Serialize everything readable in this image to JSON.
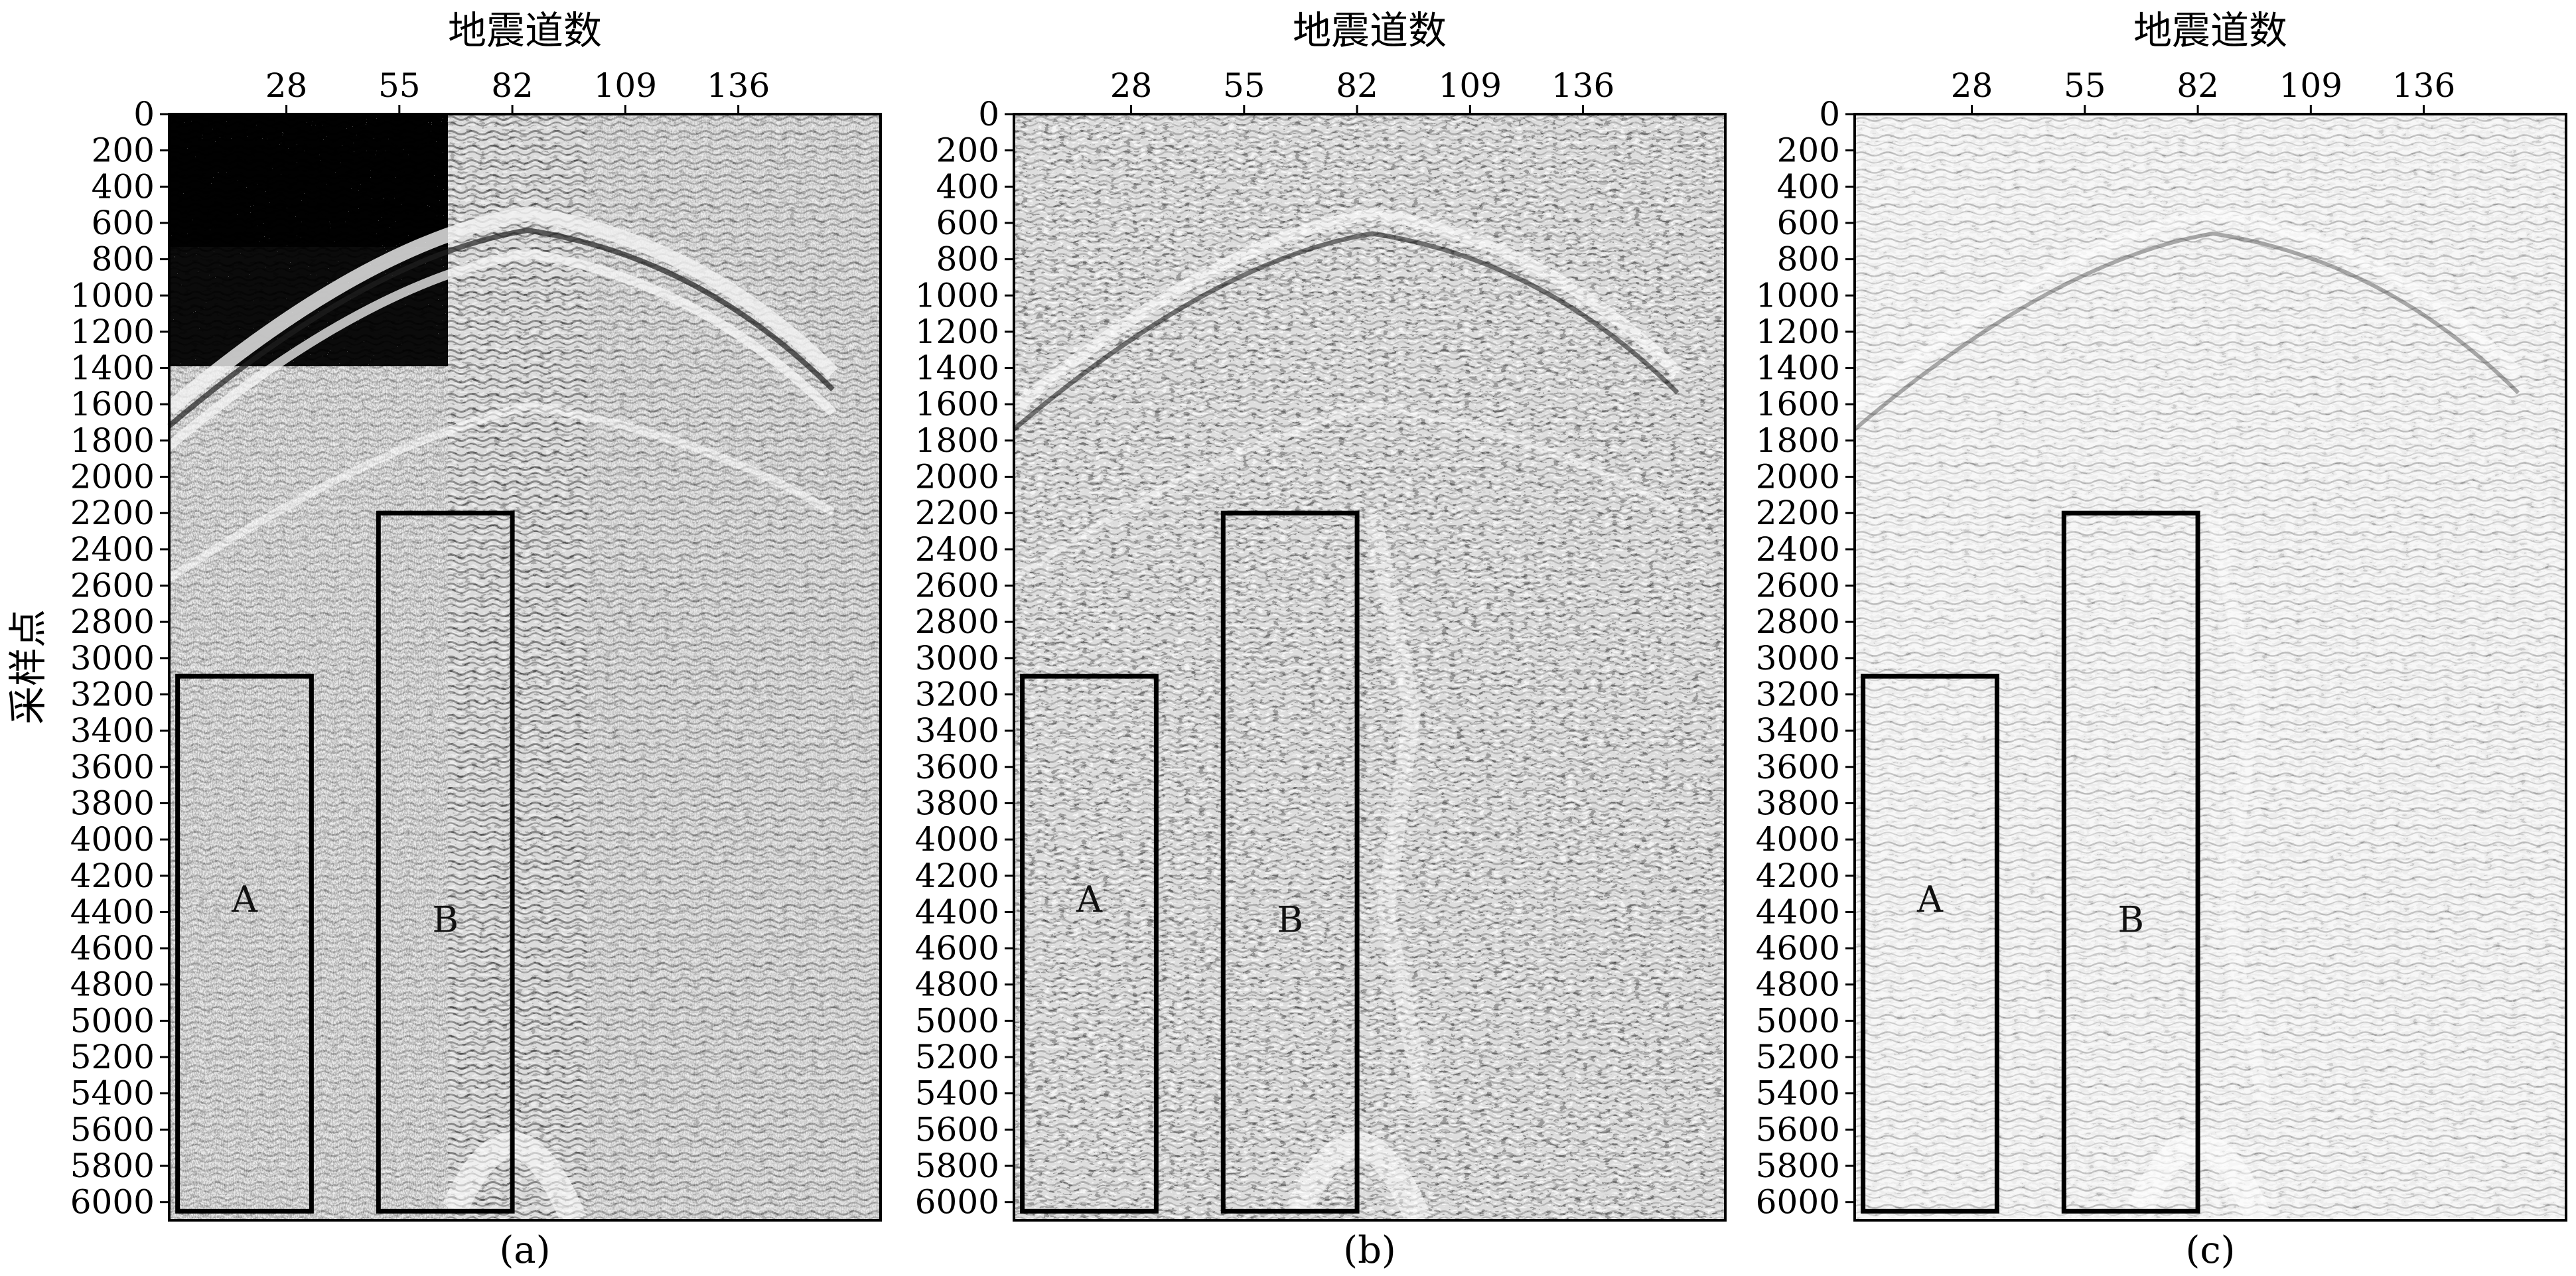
{
  "chart_data": [
    {
      "type": "heatmap",
      "panel": "a",
      "caption": "(a)",
      "xlabel": "地震道数",
      "ylabel": "采样点",
      "xlim": [
        0,
        170
      ],
      "ylim": [
        6100,
        0
      ],
      "x_ticks": [
        28,
        55,
        82,
        109,
        136
      ],
      "y_ticks": [
        0,
        200,
        400,
        600,
        800,
        1000,
        1200,
        1400,
        1600,
        1800,
        2000,
        2200,
        2400,
        2600,
        2800,
        3000,
        3200,
        3400,
        3600,
        3800,
        4000,
        4200,
        4400,
        4600,
        4800,
        5000,
        5200,
        5400,
        5600,
        5800,
        6000
      ],
      "colormap": "grayscale",
      "noise_level": "high",
      "regions": [
        {
          "label": "A",
          "x_range": [
            2,
            34
          ],
          "y_range": [
            3100,
            6050
          ]
        },
        {
          "label": "B",
          "x_range": [
            50,
            82
          ],
          "y_range": [
            2200,
            6050
          ]
        }
      ]
    },
    {
      "type": "heatmap",
      "panel": "b",
      "caption": "(b)",
      "xlabel": "地震道数",
      "ylabel": "",
      "xlim": [
        0,
        170
      ],
      "ylim": [
        6100,
        0
      ],
      "x_ticks": [
        28,
        55,
        82,
        109,
        136
      ],
      "y_ticks": [
        0,
        200,
        400,
        600,
        800,
        1000,
        1200,
        1400,
        1600,
        1800,
        2000,
        2200,
        2400,
        2600,
        2800,
        3000,
        3200,
        3400,
        3600,
        3800,
        4000,
        4200,
        4400,
        4600,
        4800,
        5000,
        5200,
        5400,
        5600,
        5800,
        6000
      ],
      "colormap": "grayscale",
      "noise_level": "medium",
      "regions": [
        {
          "label": "A",
          "x_range": [
            2,
            34
          ],
          "y_range": [
            3100,
            6050
          ]
        },
        {
          "label": "B",
          "x_range": [
            50,
            82
          ],
          "y_range": [
            2200,
            6050
          ]
        }
      ]
    },
    {
      "type": "heatmap",
      "panel": "c",
      "caption": "(c)",
      "xlabel": "地震道数",
      "ylabel": "",
      "xlim": [
        0,
        170
      ],
      "ylim": [
        6100,
        0
      ],
      "x_ticks": [
        28,
        55,
        82,
        109,
        136
      ],
      "y_ticks": [
        0,
        200,
        400,
        600,
        800,
        1000,
        1200,
        1400,
        1600,
        1800,
        2000,
        2200,
        2400,
        2600,
        2800,
        3000,
        3200,
        3400,
        3600,
        3800,
        4000,
        4200,
        4400,
        4600,
        4800,
        5000,
        5200,
        5400,
        5600,
        5800,
        6000
      ],
      "colormap": "grayscale",
      "noise_level": "low",
      "regions": [
        {
          "label": "A",
          "x_range": [
            2,
            34
          ],
          "y_range": [
            3100,
            6050
          ]
        },
        {
          "label": "B",
          "x_range": [
            50,
            82
          ],
          "y_range": [
            2200,
            6050
          ]
        }
      ]
    }
  ]
}
